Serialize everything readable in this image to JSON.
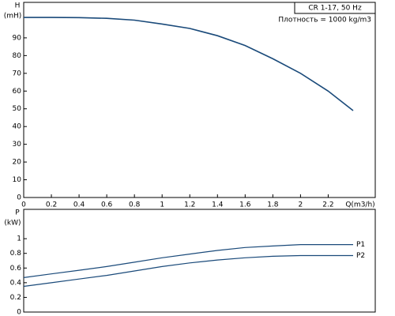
{
  "chart_data": [
    {
      "type": "line",
      "ylabel": "H",
      "yunit": "(mH)",
      "xlabel": "Q(m3/h)",
      "annotations": [
        "CR 1-17, 50 Hz",
        "Плотность = 1000 kg/m3"
      ],
      "xlim": [
        0,
        2.54
      ],
      "xticks": [
        0,
        0.2,
        0.4,
        0.6,
        0.8,
        1,
        1.2,
        1.4,
        1.6,
        1.8,
        2,
        2.2
      ],
      "ylim": [
        0,
        110
      ],
      "yticks": [
        0,
        10,
        20,
        30,
        40,
        50,
        60,
        70,
        80,
        90
      ],
      "x": [
        0,
        0.2,
        0.4,
        0.6,
        0.8,
        1.0,
        1.2,
        1.4,
        1.6,
        1.8,
        2.0,
        2.2,
        2.38
      ],
      "series": [
        {
          "name": null,
          "color": "#1a4a7a",
          "values": [
            101.5,
            101.5,
            101.4,
            101,
            100,
            97.8,
            95.3,
            91.2,
            85.7,
            78.2,
            70,
            60,
            49
          ]
        }
      ]
    },
    {
      "type": "line",
      "ylabel": "P",
      "yunit": "(kW)",
      "xlim": [
        0,
        2.54
      ],
      "ylim": [
        0,
        1.4
      ],
      "yticks": [
        0,
        0.2,
        0.4,
        0.6,
        0.8,
        1
      ],
      "x": [
        0,
        0.2,
        0.4,
        0.6,
        0.8,
        1.0,
        1.2,
        1.4,
        1.6,
        1.8,
        2.0,
        2.2,
        2.38
      ],
      "series": [
        {
          "name": "P1",
          "color": "#1a4a7a",
          "values": [
            0.47,
            0.52,
            0.57,
            0.62,
            0.68,
            0.74,
            0.79,
            0.84,
            0.88,
            0.9,
            0.92,
            0.92,
            0.92
          ]
        },
        {
          "name": "P2",
          "color": "#1a4a7a",
          "values": [
            0.35,
            0.4,
            0.45,
            0.5,
            0.56,
            0.62,
            0.67,
            0.71,
            0.74,
            0.76,
            0.77,
            0.77,
            0.77
          ]
        }
      ]
    }
  ]
}
